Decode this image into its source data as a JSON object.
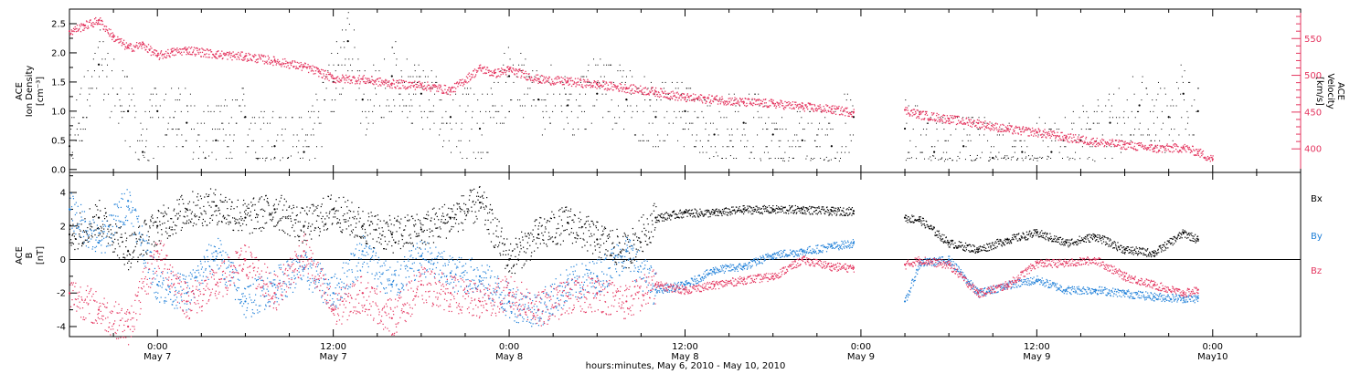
{
  "colors": {
    "black": "#000000",
    "pink": "#e4355f",
    "blue": "#1e7fd8",
    "frame": "#000000",
    "background": "#ffffff"
  },
  "footer": {
    "xaxis_title": "hours:minutes, May  6, 2010 - May 10, 2010"
  },
  "chart_data": [
    {
      "type": "scatter",
      "panel": "top",
      "ylabel_left": [
        "ACE",
        "Ion Density",
        "[cm⁻³]"
      ],
      "ylabel_right": [
        "ACE",
        "Velocity",
        "[km/s]"
      ],
      "y_left_ticks": [
        "0.0",
        "0.5",
        "1.0",
        "1.5",
        "2.0",
        "2.5"
      ],
      "y_left_range": [
        -0.05,
        2.75
      ],
      "y_right_ticks": [
        "400",
        "450",
        "500",
        "550"
      ],
      "y_right_range": [
        368,
        590
      ],
      "x_range_hours": [
        -6,
        78
      ],
      "series": [
        {
          "color": "black",
          "axis": "left",
          "style": "sparse-dots",
          "x": [
            -6,
            -4,
            -2,
            -1,
            0,
            2,
            4,
            6,
            8,
            10,
            12,
            13,
            14,
            16,
            18,
            20,
            22,
            24,
            26,
            28,
            30,
            32,
            34,
            36,
            38,
            40,
            42,
            44,
            46,
            47.5,
            51,
            53,
            55,
            57,
            59,
            61,
            63,
            65,
            67,
            69,
            70,
            71
          ],
          "y": [
            0.4,
            1.8,
            1.0,
            0.3,
            1.0,
            0.8,
            0.5,
            0.9,
            0.4,
            0.3,
            1.5,
            2.2,
            1.2,
            1.6,
            1.3,
            0.9,
            0.7,
            1.6,
            1.2,
            1.1,
            1.3,
            1.2,
            0.9,
            1.0,
            0.6,
            0.8,
            0.6,
            0.5,
            0.4,
            0.9,
            0.7,
            0.3,
            0.4,
            0.2,
            0.3,
            0.3,
            0.5,
            0.8,
            1.1,
            0.9,
            1.3,
            1.0
          ]
        },
        {
          "color": "pink",
          "axis": "right",
          "style": "dense-line",
          "x": [
            -6,
            -5,
            -4,
            -3,
            -2,
            -1,
            0,
            1,
            2,
            4,
            6,
            8,
            10,
            11,
            12,
            14,
            16,
            18,
            20,
            22,
            23,
            24,
            26,
            28,
            30,
            32,
            34,
            36,
            38,
            40,
            42,
            44,
            46,
            47.5,
            51,
            52,
            54,
            56,
            58,
            60,
            62,
            64,
            66,
            68,
            70,
            71,
            72
          ],
          "y": [
            560,
            568,
            575,
            552,
            538,
            542,
            527,
            532,
            535,
            529,
            526,
            520,
            512,
            505,
            496,
            495,
            489,
            487,
            480,
            510,
            503,
            508,
            495,
            492,
            488,
            483,
            478,
            470,
            468,
            464,
            462,
            458,
            454,
            450,
            453,
            447,
            441,
            435,
            427,
            423,
            416,
            410,
            406,
            401,
            402,
            396,
            386
          ]
        }
      ]
    },
    {
      "type": "scatter",
      "panel": "bottom",
      "ylabel_left": [
        "ACE",
        "B",
        "[nT]"
      ],
      "y_ticks": [
        "-4",
        "-2",
        "0",
        "2",
        "4"
      ],
      "y_range": [
        -4.6,
        5.2
      ],
      "zero_line": true,
      "legend_placement": "right",
      "x_range_hours": [
        -6,
        78
      ],
      "series": [
        {
          "name": "Bx",
          "color": "black",
          "x": [
            -6,
            -4,
            -2,
            0,
            2,
            4,
            6,
            8,
            10,
            12,
            14,
            16,
            18,
            20,
            22,
            24,
            26,
            28,
            30,
            32,
            34,
            36,
            38,
            40,
            42,
            44,
            46,
            47.5,
            51,
            52,
            54,
            56,
            58,
            60,
            62,
            64,
            66,
            68,
            70,
            71
          ],
          "y": [
            1.5,
            2.5,
            0.5,
            2.0,
            3.0,
            3.2,
            2.5,
            3.0,
            2.0,
            3.0,
            2.0,
            1.5,
            1.8,
            2.5,
            3.4,
            0.0,
            1.5,
            2.2,
            1.2,
            0.5,
            2.5,
            2.8,
            2.8,
            3.0,
            3.0,
            3.0,
            2.9,
            2.9,
            2.5,
            2.4,
            1.0,
            0.6,
            1.2,
            1.6,
            1.0,
            1.4,
            0.6,
            0.4,
            1.6,
            1.2
          ]
        },
        {
          "name": "By",
          "color": "blue",
          "x": [
            -6,
            -4,
            -2,
            0,
            2,
            4,
            6,
            8,
            10,
            12,
            14,
            16,
            18,
            20,
            22,
            24,
            26,
            28,
            30,
            32,
            34,
            36,
            38,
            40,
            42,
            44,
            46,
            47.5,
            51,
            52,
            54,
            56,
            58,
            60,
            62,
            64,
            66,
            68,
            70,
            71
          ],
          "y": [
            3.0,
            1.0,
            3.5,
            -1.5,
            -2.0,
            0.5,
            -2.5,
            -1.5,
            -0.5,
            -2.0,
            0.5,
            -1.5,
            0.2,
            -0.8,
            -1.0,
            -2.5,
            -3.0,
            -1.5,
            -1.0,
            0.5,
            -1.8,
            -1.5,
            -0.6,
            -0.4,
            0.3,
            0.5,
            0.8,
            1.0,
            -2.5,
            -0.2,
            0.0,
            -2.0,
            -1.5,
            -1.2,
            -1.8,
            -1.8,
            -2.0,
            -2.2,
            -2.3,
            -2.3
          ]
        },
        {
          "name": "Bz",
          "color": "pink",
          "x": [
            -6,
            -4,
            -2,
            0,
            2,
            4,
            6,
            8,
            10,
            12,
            14,
            16,
            18,
            20,
            22,
            24,
            26,
            28,
            30,
            32,
            34,
            36,
            38,
            40,
            42,
            44,
            46,
            47.5,
            51,
            52,
            54,
            56,
            58,
            60,
            62,
            64,
            66,
            68,
            70,
            71
          ],
          "y": [
            -2.0,
            -3.0,
            -4.0,
            0.5,
            -2.5,
            -1.5,
            0.0,
            -2.0,
            0.5,
            -3.0,
            -2.0,
            -3.5,
            -1.5,
            -2.0,
            -2.5,
            -2.0,
            -3.0,
            -2.2,
            -2.0,
            -2.5,
            -1.5,
            -1.8,
            -1.5,
            -1.2,
            -1.0,
            0.0,
            -0.4,
            -0.5,
            -0.3,
            0.0,
            -0.3,
            -2.0,
            -1.5,
            -0.2,
            -0.2,
            0.0,
            -1.0,
            -1.5,
            -2.0,
            -1.8
          ]
        }
      ]
    }
  ],
  "x_axis": {
    "ticks": [
      {
        "hour": 0,
        "time": "0:00",
        "date": "May 7"
      },
      {
        "hour": 12,
        "time": "12:00",
        "date": "May 7"
      },
      {
        "hour": 24,
        "time": "0:00",
        "date": "May 8"
      },
      {
        "hour": 36,
        "time": "12:00",
        "date": "May 8"
      },
      {
        "hour": 48,
        "time": "0:00",
        "date": "May 9"
      },
      {
        "hour": 60,
        "time": "12:00",
        "date": "May 9"
      },
      {
        "hour": 72,
        "time": "0:00",
        "date": "May10"
      }
    ],
    "minor_tick_hours": 3
  }
}
